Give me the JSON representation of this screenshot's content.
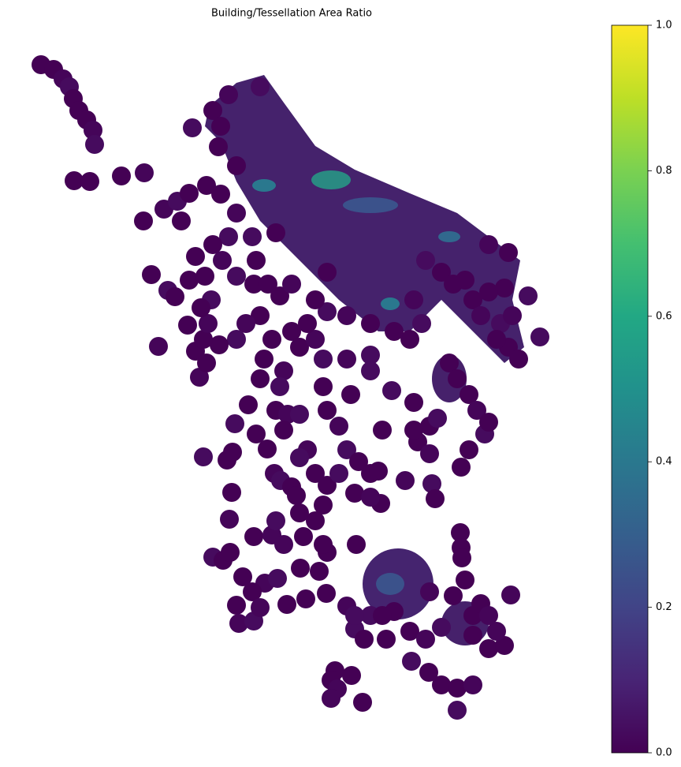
{
  "chart_data": {
    "type": "choropleth",
    "title": "Building/Tessellation Area Ratio",
    "colormap": "viridis",
    "ylim": [
      0,
      1
    ],
    "yticks": [
      {
        "value": 0,
        "label": "0.0"
      },
      {
        "value": 0.2,
        "label": "0.2"
      },
      {
        "value": 0.4,
        "label": "0.4"
      },
      {
        "value": 0.6,
        "label": "0.6"
      },
      {
        "value": 0.8,
        "label": "0.8"
      },
      {
        "value": 1,
        "label": "1.0"
      }
    ]
  }
}
